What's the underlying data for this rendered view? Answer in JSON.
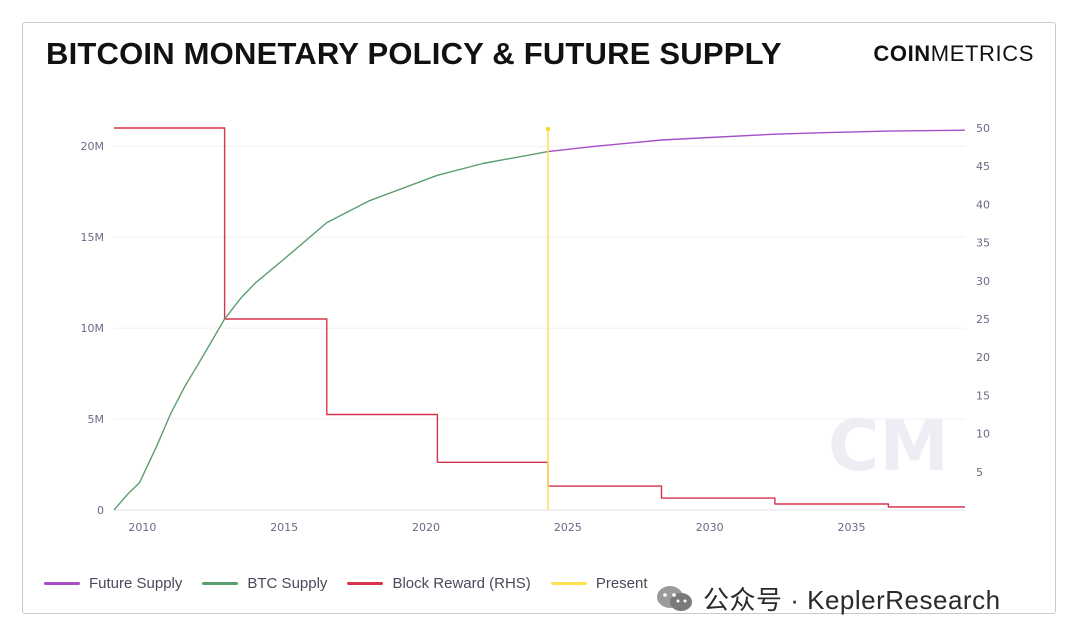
{
  "title": "BITCOIN MONETARY POLICY & FUTURE SUPPLY",
  "brand": {
    "bold": "COIN",
    "light": "METRICS"
  },
  "watermark_logo": "CM",
  "watermark_text": "公众号 · KeplerResearch",
  "chart_data": {
    "type": "line",
    "title": "BITCOIN MONETARY POLICY & FUTURE SUPPLY",
    "xlim": [
      2009.0,
      2039.0
    ],
    "x_ticks": [
      "2010",
      "2015",
      "2020",
      "2025",
      "2030",
      "2035"
    ],
    "y_left": {
      "lim": [
        0,
        21000000
      ],
      "ticks": [
        0,
        5000000,
        10000000,
        15000000,
        20000000
      ],
      "tick_labels": [
        "0",
        "5M",
        "10M",
        "15M",
        "20M"
      ]
    },
    "y_right": {
      "lim": [
        0,
        50
      ],
      "ticks": [
        5,
        10,
        15,
        20,
        25,
        30,
        35,
        40,
        45,
        50
      ],
      "tick_labels": [
        "5",
        "10",
        "15",
        "20",
        "25",
        "30",
        "35",
        "40",
        "45",
        "50"
      ]
    },
    "grid": true,
    "legend_position": "bottom-left",
    "series": [
      {
        "name": "Future Supply",
        "axis": "left",
        "color": "#a44fc8",
        "points": [
          [
            2024.3,
            19700000
          ],
          [
            2026,
            20000000
          ],
          [
            2028.3,
            20340000
          ],
          [
            2030,
            20480000
          ],
          [
            2032.3,
            20660000
          ],
          [
            2034,
            20740000
          ],
          [
            2036.3,
            20830000
          ],
          [
            2039,
            20880000
          ]
        ]
      },
      {
        "name": "BTC Supply",
        "axis": "left",
        "color": "#5a9e6f",
        "points": [
          [
            2009.0,
            0
          ],
          [
            2009.5,
            900000
          ],
          [
            2009.9,
            1500000
          ],
          [
            2010.5,
            3500000
          ],
          [
            2011.0,
            5300000
          ],
          [
            2011.5,
            6800000
          ],
          [
            2012.0,
            8100000
          ],
          [
            2012.9,
            10500000
          ],
          [
            2013.5,
            11700000
          ],
          [
            2014.0,
            12500000
          ],
          [
            2015.0,
            13800000
          ],
          [
            2016.5,
            15800000
          ],
          [
            2018.0,
            17000000
          ],
          [
            2020.4,
            18400000
          ],
          [
            2022.0,
            19050000
          ],
          [
            2024.3,
            19700000
          ]
        ]
      },
      {
        "name": "Block Reward (RHS)",
        "axis": "right",
        "color": "#d8334d",
        "points": [
          [
            2009.0,
            50
          ],
          [
            2012.9,
            50
          ],
          [
            2012.9,
            25
          ],
          [
            2016.5,
            25
          ],
          [
            2016.5,
            12.5
          ],
          [
            2020.4,
            12.5
          ],
          [
            2020.4,
            6.25
          ],
          [
            2024.3,
            6.25
          ],
          [
            2024.3,
            3.125
          ],
          [
            2028.3,
            3.125
          ],
          [
            2028.3,
            1.5625
          ],
          [
            2032.3,
            1.5625
          ],
          [
            2032.3,
            0.78125
          ],
          [
            2036.3,
            0.78125
          ],
          [
            2036.3,
            0.390625
          ],
          [
            2039,
            0.390625
          ]
        ]
      },
      {
        "name": "Present",
        "axis": "marker",
        "color": "#ffe14d",
        "x": 2024.3
      }
    ]
  }
}
